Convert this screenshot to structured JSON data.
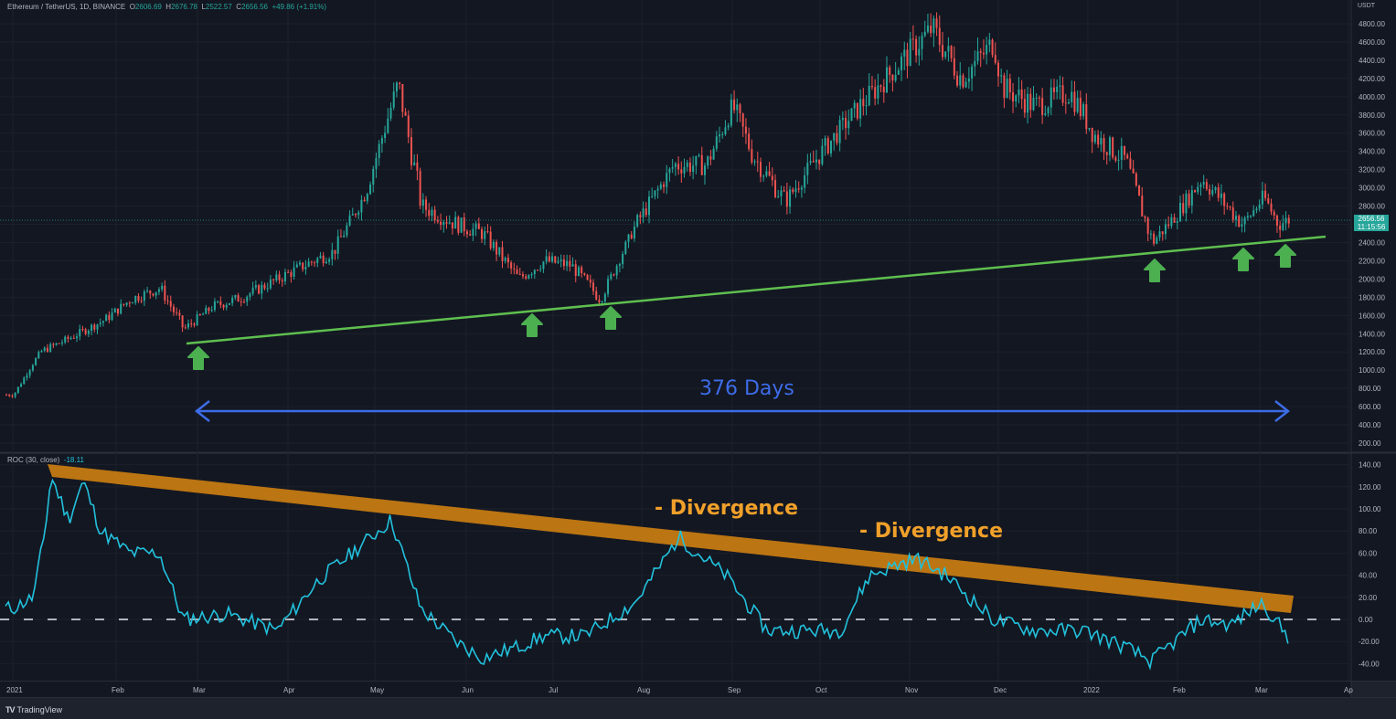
{
  "header": {
    "symbol": "Ethereum / TetherUS, 1D, BINANCE",
    "open_label": "O",
    "open": "2606.69",
    "high_label": "H",
    "high": "2676.78",
    "low_label": "L",
    "low": "2522.57",
    "close_label": "C",
    "close": "2656.56",
    "change": "+49.86 (+1.91%)"
  },
  "price_axis": {
    "unit": "USDT",
    "ticks": [
      "4800.00",
      "4600.00",
      "4400.00",
      "4200.00",
      "4000.00",
      "3800.00",
      "3600.00",
      "3400.00",
      "3200.00",
      "3000.00",
      "2800.00",
      "2400.00",
      "2200.00",
      "2000.00",
      "1800.00",
      "1600.00",
      "1400.00",
      "1200.00",
      "1000.00",
      "800.00",
      "600.00",
      "400.00",
      "200.00"
    ],
    "last_price": "2656.56",
    "countdown": "11:15:56"
  },
  "roc": {
    "label": "ROC (30, close)",
    "value": "-18.11",
    "ticks": [
      "140.00",
      "120.00",
      "100.00",
      "80.00",
      "60.00",
      "40.00",
      "20.00",
      "0.00",
      "-20.00",
      "-40.00"
    ]
  },
  "time_axis": {
    "labels": [
      "2021",
      "Feb",
      "Mar",
      "Apr",
      "May",
      "Jun",
      "Jul",
      "Aug",
      "Sep",
      "Oct",
      "Nov",
      "Dec",
      "2022",
      "Feb",
      "Mar",
      "Ap"
    ]
  },
  "annotations": {
    "days_label": "376 Days",
    "divergence_1": "- Divergence",
    "divergence_2": "- Divergence"
  },
  "footer": {
    "logo": "TV",
    "brand": "TradingView"
  },
  "colors": {
    "background": "#131722",
    "up": "#26a69a",
    "down": "#ef5350",
    "trendline": "#4caf50",
    "arrow": "#4caf50",
    "range_arrow": "#3d6ce8",
    "roc_line": "#22c1dc",
    "divergence_band": "#c47a12",
    "divergence_text": "#f0a02a"
  },
  "chart_data": [
    {
      "type": "candlestick",
      "title": "Ethereum / TetherUS, 1D, BINANCE",
      "xlabel": "",
      "ylabel": "USDT",
      "ylim": [
        100,
        4900
      ],
      "x": [
        "2021-01-01",
        "2021-01-10",
        "2021-01-20",
        "2021-02-01",
        "2021-02-10",
        "2021-02-20",
        "2021-02-28",
        "2021-03-10",
        "2021-03-20",
        "2021-04-01",
        "2021-04-10",
        "2021-04-20",
        "2021-05-01",
        "2021-05-06",
        "2021-05-12",
        "2021-05-20",
        "2021-06-01",
        "2021-06-10",
        "2021-06-22",
        "2021-07-01",
        "2021-07-10",
        "2021-07-20",
        "2021-08-01",
        "2021-08-14",
        "2021-08-25",
        "2021-09-03",
        "2021-09-10",
        "2021-09-21",
        "2021-10-01",
        "2021-10-15",
        "2021-10-28",
        "2021-11-10",
        "2021-11-20",
        "2021-12-01",
        "2021-12-04",
        "2021-12-15",
        "2021-12-27",
        "2022-01-05",
        "2022-01-15",
        "2022-01-24",
        "2022-02-01",
        "2022-02-10",
        "2022-02-24",
        "2022-03-03",
        "2022-03-08",
        "2022-03-12"
      ],
      "close": [
        730,
        1200,
        1350,
        1550,
        1780,
        1900,
        1450,
        1700,
        1800,
        2000,
        2150,
        2300,
        2950,
        3500,
        4150,
        2800,
        2600,
        2500,
        2000,
        2200,
        2150,
        1780,
        2600,
        3250,
        3250,
        3900,
        3350,
        2850,
        3300,
        3850,
        4300,
        4750,
        4200,
        4600,
        4100,
        3900,
        4050,
        3550,
        3300,
        2400,
        2700,
        3100,
        2600,
        2900,
        2600,
        2656.56
      ],
      "trendline": {
        "from": {
          "x": "2021-02-28",
          "y": 1300
        },
        "to": {
          "x": "2022-03-20",
          "y": 2440
        }
      },
      "support_touches": [
        "2021-02-28",
        "2021-06-22",
        "2021-07-20",
        "2022-01-24",
        "2022-02-24",
        "2022-03-08"
      ],
      "range_annotation": "376 Days"
    },
    {
      "type": "line",
      "title": "ROC (30, close)",
      "ylabel": "ROC",
      "ylim": [
        -48,
        145
      ],
      "x": [
        "2021-01-01",
        "2021-01-08",
        "2021-01-12",
        "2021-01-14",
        "2021-01-20",
        "2021-01-25",
        "2021-01-31",
        "2021-02-10",
        "2021-02-20",
        "2021-02-28",
        "2021-03-15",
        "2021-04-01",
        "2021-04-15",
        "2021-05-01",
        "2021-05-10",
        "2021-05-20",
        "2021-06-01",
        "2021-06-10",
        "2021-06-22",
        "2021-07-01",
        "2021-07-15",
        "2021-08-01",
        "2021-08-10",
        "2021-08-16",
        "2021-08-20",
        "2021-09-01",
        "2021-09-15",
        "2021-09-25",
        "2021-10-10",
        "2021-10-20",
        "2021-10-30",
        "2021-11-05",
        "2021-11-15",
        "2021-12-01",
        "2021-12-15",
        "2022-01-01",
        "2022-01-15",
        "2022-01-24",
        "2022-02-01",
        "2022-02-10",
        "2022-02-20",
        "2022-02-28",
        "2022-03-03",
        "2022-03-12"
      ],
      "values": [
        10,
        20,
        80,
        130,
        90,
        125,
        80,
        60,
        60,
        0,
        5,
        -10,
        35,
        70,
        90,
        10,
        -20,
        -35,
        -25,
        -15,
        -15,
        15,
        50,
        75,
        65,
        40,
        -10,
        -10,
        -10,
        40,
        50,
        55,
        40,
        0,
        -10,
        -10,
        -25,
        -38,
        -20,
        0,
        -5,
        10,
        15,
        -18.11
      ],
      "reference_line": 0,
      "divergence_band": {
        "from": {
          "x": "2021-01-12",
          "y": 136
        },
        "to": {
          "x": "2022-03-12",
          "y": 13
        }
      },
      "annotations": [
        "- Divergence",
        "- Divergence"
      ]
    }
  ]
}
